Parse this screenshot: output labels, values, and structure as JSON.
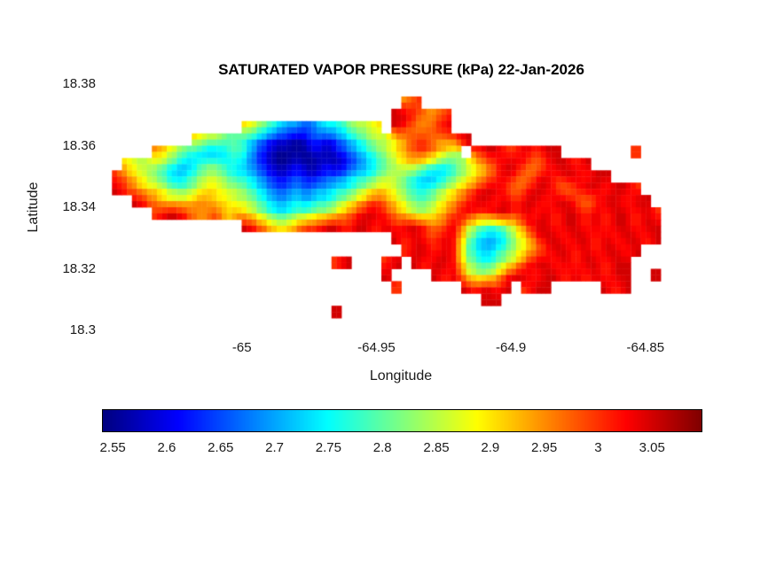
{
  "chart_data": {
    "type": "heatmap",
    "title": "SATURATED VAPOR PRESSURE (kPa) 22-Jan-2026",
    "date": "22-Jan-2026",
    "units": "kPa",
    "xlabel": "Longitude",
    "ylabel": "Latitude",
    "xlim": [
      -65.052,
      -64.8295
    ],
    "ylim": [
      18.3,
      18.38
    ],
    "xticks": [
      -65,
      -64.95,
      -64.9,
      -64.85
    ],
    "xtick_labels": [
      "-65",
      "-64.95",
      "-64.9",
      "-64.85"
    ],
    "yticks": [
      18.38,
      18.36,
      18.34,
      18.32,
      18.3
    ],
    "ytick_labels": [
      "18.38",
      "18.36",
      "18.34",
      "18.32",
      "18.3"
    ],
    "grid_on": false,
    "legend": "none",
    "colormap": "jet",
    "colorbar": {
      "orientation": "horizontal",
      "position": "south",
      "range": [
        2.54,
        3.095
      ],
      "ticks": [
        2.55,
        2.6,
        2.65,
        2.7,
        2.75,
        2.8,
        2.85,
        2.9,
        2.95,
        3,
        3.05
      ],
      "tick_labels": [
        "2.55",
        "2.6",
        "2.65",
        "2.7",
        "2.75",
        "2.8",
        "2.85",
        "2.9",
        "2.95",
        "3",
        "3.05"
      ]
    },
    "value_bins": {
      "a": 2.55,
      "b": 2.6,
      "c": 2.65,
      "d": 2.7,
      "e": 2.75,
      "f": 2.8,
      "g": 2.85,
      "h": 2.9,
      "i": 2.95,
      "j": 3.0,
      "k": 3.05
    },
    "water_char": ".",
    "grid": {
      "cols": 60,
      "note": "each row is a list of [startCol, values] runs; letters map to kPa via value_bins, water elsewhere",
      "rows": [
        [],
        [
          [
            30,
            "ij"
          ]
        ],
        [
          [
            29,
            "kkjiij"
          ]
        ],
        [
          [
            14,
            "hgfeddcdeefggh"
          ],
          [
            29,
            "kjiijk"
          ]
        ],
        [
          [
            9,
            "hggffedcbbabcbcdefg"
          ],
          [
            28,
            "g"
          ],
          [
            29,
            "hijjiijk"
          ]
        ],
        [
          [
            5,
            "ihgf"
          ],
          [
            9,
            "eddef"
          ],
          [
            14,
            "ecbaaaababcdef"
          ],
          [
            28,
            "ghijjihg"
          ],
          [
            37,
            "jkkj"
          ],
          [
            41,
            "jkjkk"
          ],
          [
            53,
            "j"
          ]
        ],
        [
          [
            2,
            "hgg"
          ],
          [
            5,
            "gfed"
          ],
          [
            9,
            "effee"
          ],
          [
            14,
            "dcbaabaababcde"
          ],
          [
            28,
            "fghhgf"
          ],
          [
            34,
            "efghijk"
          ],
          [
            41,
            "kjijkkjk"
          ]
        ],
        [
          [
            1,
            "jihg"
          ],
          [
            5,
            "fede"
          ],
          [
            9,
            "fggfe"
          ],
          [
            14,
            "edcbbcbbccdeef"
          ],
          [
            28,
            "ggfeddef"
          ],
          [
            36,
            "ghijkjij"
          ],
          [
            44,
            "kjkkjkk"
          ]
        ],
        [
          [
            1,
            "kjih"
          ],
          [
            5,
            "hgff"
          ],
          [
            9,
            "ghhgg"
          ],
          [
            14,
            "fedccdcddeefgh"
          ],
          [
            28,
            "hgfeefgh"
          ],
          [
            36,
            "ijkkjijk"
          ],
          [
            44,
            "kjijkkjkkj"
          ]
        ],
        [
          [
            3,
            "kjihh"
          ],
          [
            8,
            "hiihhg"
          ],
          [
            14,
            "gfeddedeefghij"
          ],
          [
            28,
            "ihgffghi"
          ],
          [
            36,
            "jkkjkjkk"
          ],
          [
            44,
            "jkkjijkkjkk"
          ]
        ],
        [
          [
            5,
            "jkkjiijhi"
          ],
          [
            14,
            "hgfeeffgghijkk"
          ],
          [
            28,
            "jihgghij"
          ],
          [
            36,
            "kjjkkjkj"
          ],
          [
            44,
            "kjkkjkjkkjkj"
          ]
        ],
        [
          [
            14,
            "kjihhijjkkjkkj"
          ],
          [
            28,
            "kjkkjijk"
          ],
          [
            36,
            "hgffgh"
          ],
          [
            42,
            "jkkjkkjkjkkjkk"
          ]
        ],
        [
          [
            29,
            "kjkjjkj"
          ],
          [
            36,
            "geddeg"
          ],
          [
            42,
            "hjkkjkkjkjkkjk"
          ]
        ],
        [
          [
            30,
            "jkkjkj"
          ],
          [
            36,
            "fedefg"
          ],
          [
            42,
            "hijkkjkjk"
          ],
          [
            51,
            "kjk"
          ]
        ],
        [
          [
            23,
            "jk"
          ],
          [
            28,
            "jk"
          ],
          [
            31,
            "kjkkj"
          ],
          [
            36,
            "gfefgh"
          ],
          [
            42,
            "jkkjkjkk"
          ],
          [
            50,
            "jkk"
          ]
        ],
        [
          [
            28,
            "k"
          ],
          [
            33,
            "kjk"
          ],
          [
            36,
            "hgghjk"
          ],
          [
            42,
            "kjkkjkj"
          ],
          [
            49,
            "kjkk"
          ],
          [
            55,
            "k"
          ]
        ],
        [
          [
            29,
            "j"
          ],
          [
            36,
            "kjkjk"
          ],
          [
            42,
            "jkk"
          ],
          [
            50,
            "kjk"
          ]
        ],
        [
          [
            38,
            "kk"
          ]
        ],
        [
          [
            23,
            "k"
          ]
        ],
        []
      ]
    }
  }
}
